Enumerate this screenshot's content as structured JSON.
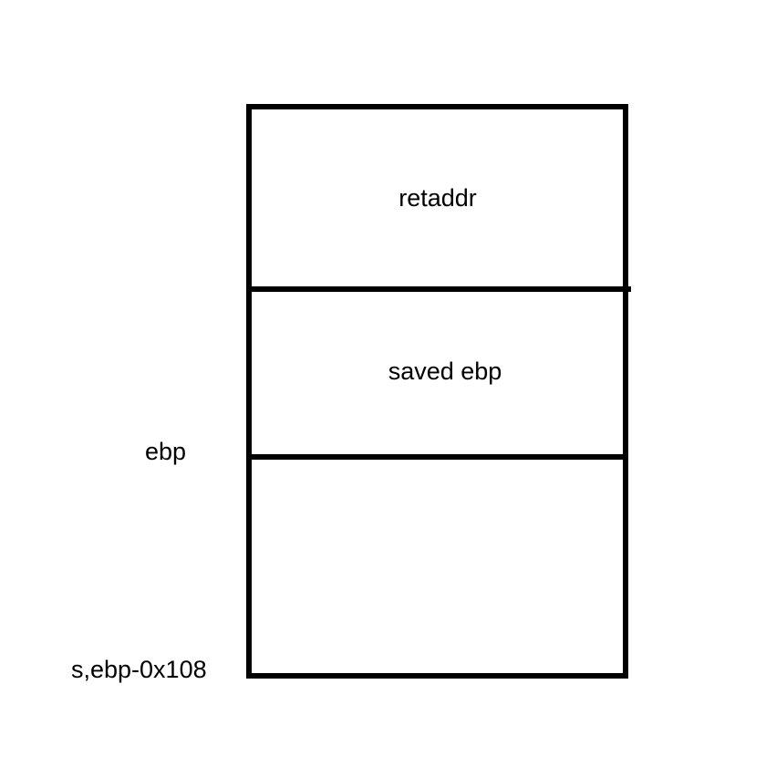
{
  "diagram": {
    "cells": [
      {
        "label": "retaddr"
      },
      {
        "label": "saved ebp"
      },
      {
        "label": ""
      }
    ],
    "markers": {
      "ebp": "ebp",
      "s": "s,ebp-0x108"
    }
  }
}
